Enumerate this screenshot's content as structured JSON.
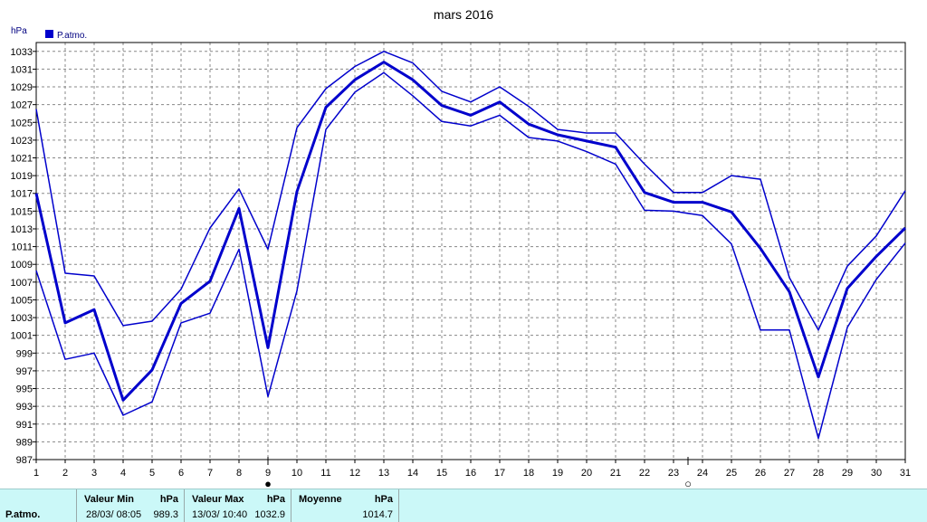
{
  "chart_data": {
    "type": "line",
    "title": "mars 2016",
    "ylabel": "hPa",
    "legend": {
      "label": "P.atmo.",
      "color": "#0000cc",
      "placement": "top-left"
    },
    "ylim": [
      987,
      1034
    ],
    "yticks": [
      987,
      989,
      991,
      993,
      995,
      997,
      999,
      1001,
      1003,
      1005,
      1007,
      1009,
      1011,
      1013,
      1015,
      1017,
      1019,
      1021,
      1023,
      1025,
      1027,
      1029,
      1031,
      1033
    ],
    "x": [
      1,
      2,
      3,
      4,
      5,
      6,
      7,
      8,
      9,
      10,
      11,
      12,
      13,
      14,
      15,
      16,
      17,
      18,
      19,
      20,
      21,
      22,
      23,
      24,
      25,
      26,
      27,
      28,
      29,
      30,
      31
    ],
    "grid": true,
    "moon_markers": [
      {
        "day": 9,
        "symbol": "●"
      },
      {
        "day": 23.5,
        "symbol": "○"
      }
    ],
    "series": [
      {
        "role": "max",
        "width": 1.5,
        "values": [
          1026.5,
          1008.0,
          1007.7,
          1002.1,
          1002.6,
          1006.2,
          1013.1,
          1017.5,
          1010.7,
          1024.4,
          1028.8,
          1031.3,
          1033.0,
          1031.7,
          1028.5,
          1027.3,
          1029.0,
          1026.8,
          1024.2,
          1023.8,
          1023.8,
          1020.3,
          1017.1,
          1017.1,
          1019.0,
          1018.6,
          1007.5,
          1001.6,
          1008.8,
          1012.2,
          1017.3
        ]
      },
      {
        "role": "mean",
        "width": 3,
        "values": [
          1017.0,
          1002.4,
          1003.9,
          993.7,
          997.1,
          1004.6,
          1007.1,
          1015.3,
          999.6,
          1017.2,
          1026.7,
          1029.8,
          1031.8,
          1029.8,
          1026.9,
          1025.8,
          1027.3,
          1024.8,
          1023.6,
          1022.9,
          1022.2,
          1017.1,
          1016.0,
          1016.0,
          1014.9,
          1010.8,
          1005.9,
          996.3,
          1006.3,
          1009.9,
          1013.1
        ]
      },
      {
        "role": "min",
        "width": 1.5,
        "values": [
          1008.3,
          998.3,
          999.0,
          992.0,
          993.5,
          1002.4,
          1003.5,
          1010.7,
          994.1,
          1006.0,
          1024.2,
          1028.4,
          1030.6,
          1028.0,
          1025.1,
          1024.6,
          1025.8,
          1023.3,
          1022.9,
          1021.7,
          1020.3,
          1015.1,
          1015.0,
          1014.5,
          1011.3,
          1001.6,
          1001.6,
          989.4,
          1001.9,
          1007.3,
          1011.4
        ]
      }
    ]
  },
  "footer": {
    "series_name": "P.atmo.",
    "min_label": "Valeur Min",
    "min_unit": "hPa",
    "min_time": "28/03/  08:05",
    "min_value": "989.3",
    "max_label": "Valeur Max",
    "max_unit": "hPa",
    "max_time": "13/03/  10:40",
    "max_value": "1032.9",
    "avg_label": "Moyenne",
    "avg_unit": "hPa",
    "avg_value": "1014.7"
  }
}
